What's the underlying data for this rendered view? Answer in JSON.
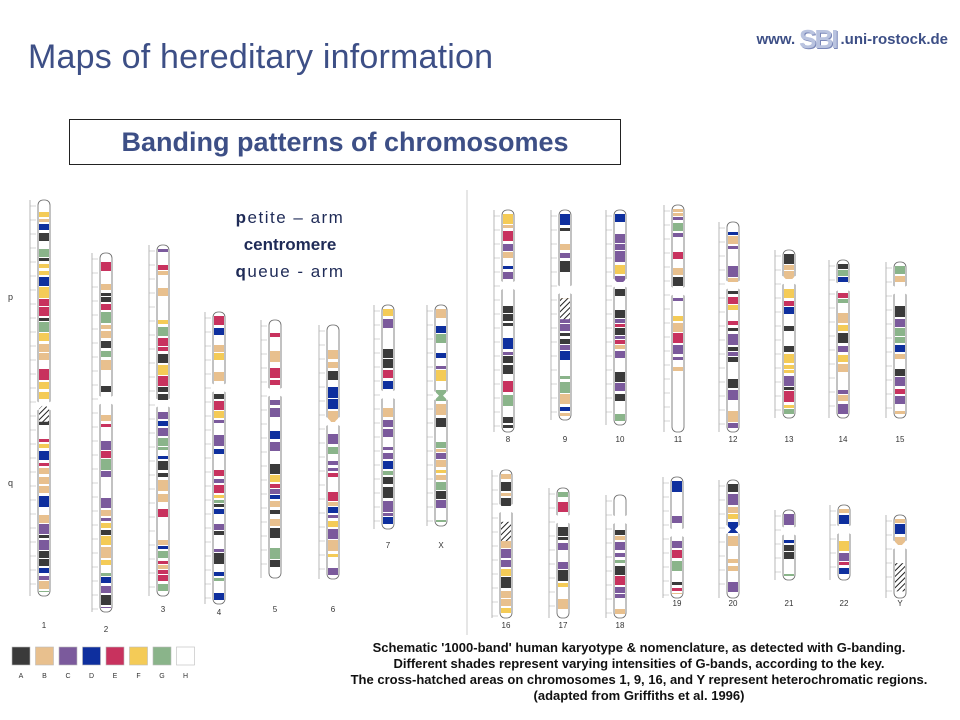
{
  "header": {
    "title": "Maps of hereditary information",
    "url_prefix": "www.",
    "url_logo": "SBI",
    "url_suffix": ".uni-rostock.de"
  },
  "subtitle": "Banding patterns of chromosomes",
  "arm_labels": {
    "p_arm": "petite – arm",
    "centromere": "centromere",
    "q_arm": "queue - arm"
  },
  "side_labels": {
    "p": "p",
    "q": "q"
  },
  "chromosome_labels": [
    "1",
    "2",
    "3",
    "4",
    "5",
    "6",
    "7",
    "X",
    "8",
    "9",
    "10",
    "11",
    "12",
    "13",
    "14",
    "15",
    "16",
    "17",
    "18",
    "19",
    "20",
    "21",
    "22",
    "Y"
  ],
  "key": {
    "letters": [
      "A",
      "B",
      "C",
      "D",
      "E",
      "F",
      "G",
      "H"
    ],
    "colors": [
      "#3a3a3a",
      "#e8c08e",
      "#7b5a9c",
      "#0e2f9e",
      "#c8325e",
      "#f4cb57",
      "#8ab48a",
      "#ffffff"
    ]
  },
  "caption": [
    "Schematic '1000-band' human karyotype & nomenclature, as detected with G-banding.",
    "Different shades represent varying intensities of G-bands, according to the key.",
    "The cross-hatched areas on chromosomes 1, 9, 16, and Y represent heterochromatic regions.",
    "(adapted from Griffiths et al. 1996)"
  ]
}
